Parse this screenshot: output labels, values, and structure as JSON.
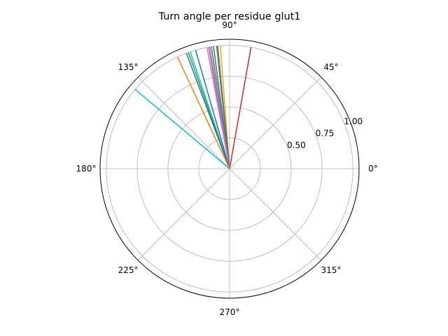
{
  "chart_data": {
    "type": "polar-line",
    "title": "Turn angle per residue glut1",
    "theta_ticks": [
      {
        "deg": 0,
        "label": "0°"
      },
      {
        "deg": 45,
        "label": "45°"
      },
      {
        "deg": 90,
        "label": "90°"
      },
      {
        "deg": 135,
        "label": "135°"
      },
      {
        "deg": 180,
        "label": "180°"
      },
      {
        "deg": 225,
        "label": "225°"
      },
      {
        "deg": 270,
        "label": "270°"
      },
      {
        "deg": 315,
        "label": "315°"
      }
    ],
    "r_ticks": [
      {
        "value": 0.25,
        "label": ""
      },
      {
        "value": 0.5,
        "label": "0.50"
      },
      {
        "value": 0.75,
        "label": "0.75"
      },
      {
        "value": 1.0,
        "label": "1.00"
      }
    ],
    "r_max": 1.05,
    "grid": true,
    "series": [
      {
        "theta": 80.0,
        "r": 1.0,
        "color": "#d62728"
      },
      {
        "theta": 94.3,
        "r": 1.0,
        "color": "#bcbd22"
      },
      {
        "theta": 95.5,
        "r": 1.0,
        "color": "#7f7f7f"
      },
      {
        "theta": 96.0,
        "r": 1.0,
        "color": "#8c564b"
      },
      {
        "theta": 97.5,
        "r": 1.0,
        "color": "#1f77b4"
      },
      {
        "theta": 98.5,
        "r": 1.0,
        "color": "#2ca02c"
      },
      {
        "theta": 99.2,
        "r": 1.0,
        "color": "#e377c2"
      },
      {
        "theta": 99.8,
        "r": 1.0,
        "color": "#9467bd"
      },
      {
        "theta": 100.6,
        "r": 1.0,
        "color": "#e377c2"
      },
      {
        "theta": 106.0,
        "r": 1.0,
        "color": "#1f77b4"
      },
      {
        "theta": 108.6,
        "r": 1.0,
        "color": "#17becf"
      },
      {
        "theta": 109.5,
        "r": 1.0,
        "color": "#2ca02c"
      },
      {
        "theta": 110.5,
        "r": 1.0,
        "color": "#1f77b4"
      },
      {
        "theta": 115.0,
        "r": 1.0,
        "color": "#ff7f0e"
      },
      {
        "theta": 140.0,
        "r": 1.0,
        "color": "#17becf"
      }
    ]
  }
}
